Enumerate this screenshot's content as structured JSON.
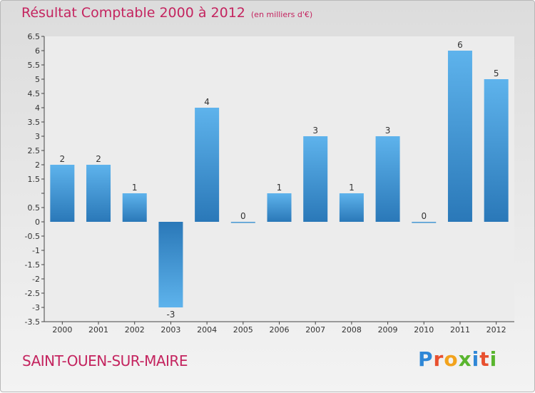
{
  "title": "Résultat Comptable 2000 à 2012",
  "subtitle": "(en milliers d'€)",
  "commune": "SAINT-OUEN-SUR-MAIRE",
  "brand": "Proxiti",
  "colors": {
    "title": "#c4245f",
    "bar_top": "#5eb3ec",
    "bar_bottom": "#2a78b8"
  },
  "chart_data": {
    "type": "bar",
    "title": "Résultat Comptable 2000 à 2012",
    "xlabel": "",
    "ylabel": "(en milliers d'€)",
    "categories": [
      "2000",
      "2001",
      "2002",
      "2003",
      "2004",
      "2005",
      "2006",
      "2007",
      "2008",
      "2009",
      "2010",
      "2011",
      "2012"
    ],
    "values": [
      2,
      2,
      1,
      -3,
      4,
      0,
      1,
      3,
      1,
      3,
      0,
      6,
      5
    ],
    "value_labels": [
      "2",
      "2",
      "1",
      "-3",
      "4",
      "0",
      "1",
      "3",
      "1",
      "3",
      "0",
      "6",
      "5"
    ],
    "ylim": [
      -3.5,
      6.5
    ],
    "yticks": [
      6.5,
      6,
      5.5,
      5,
      4.5,
      4,
      3.5,
      3,
      2.5,
      2,
      1.5,
      1,
      0.5,
      0,
      -0.5,
      -1,
      -1.5,
      -2,
      -2.5,
      -3,
      -3.5
    ],
    "ytick_labels": [
      "6.5",
      "6",
      "5.5",
      "5",
      "4.5",
      "4",
      "3.5",
      "3",
      "2.5",
      "2",
      "1.5",
      "",
      "0.5",
      "0",
      "-0.5",
      "-1",
      "-1.5",
      "-2",
      "-2.5",
      "-3",
      "-3.5"
    ],
    "grid": false
  }
}
